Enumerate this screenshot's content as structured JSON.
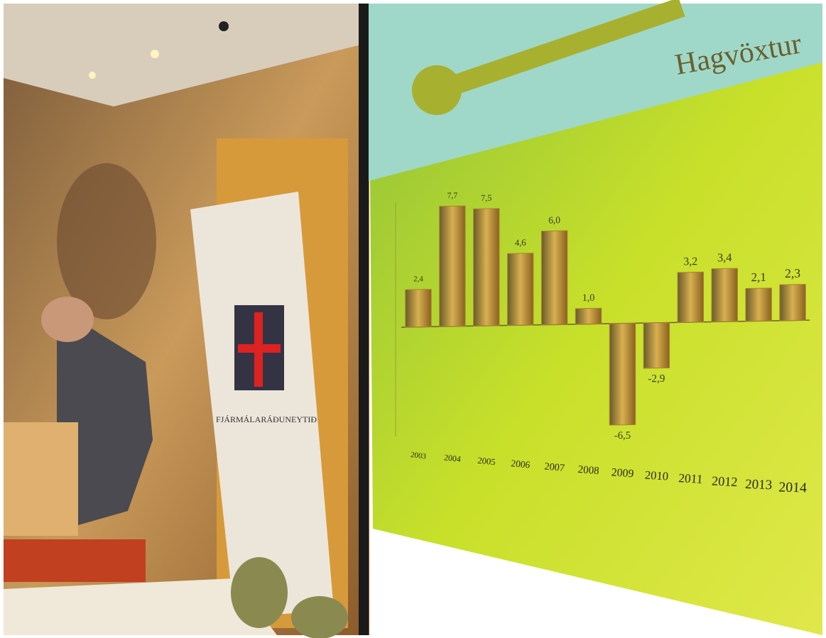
{
  "chart_data": {
    "type": "bar",
    "title": "Hagvöxtur",
    "banner": "FJÁRMÁLARÁÐUNEYTIÐ",
    "categories": [
      "2003",
      "2004",
      "2005",
      "2006",
      "2007",
      "2008",
      "2009",
      "2010",
      "2011",
      "2012",
      "2013",
      "2014"
    ],
    "values": [
      2.4,
      7.7,
      7.5,
      4.6,
      6.0,
      1.0,
      -6.5,
      -2.9,
      3.2,
      3.4,
      2.1,
      2.3
    ],
    "value_labels": [
      "2,4",
      "7,7",
      "7,5",
      "4,6",
      "6,0",
      "1,0",
      "-6,5",
      "-2,9",
      "3,2",
      "3,4",
      "2,1",
      "2,3"
    ],
    "color": "#a8862e",
    "ylim": [
      -7,
      8
    ]
  }
}
